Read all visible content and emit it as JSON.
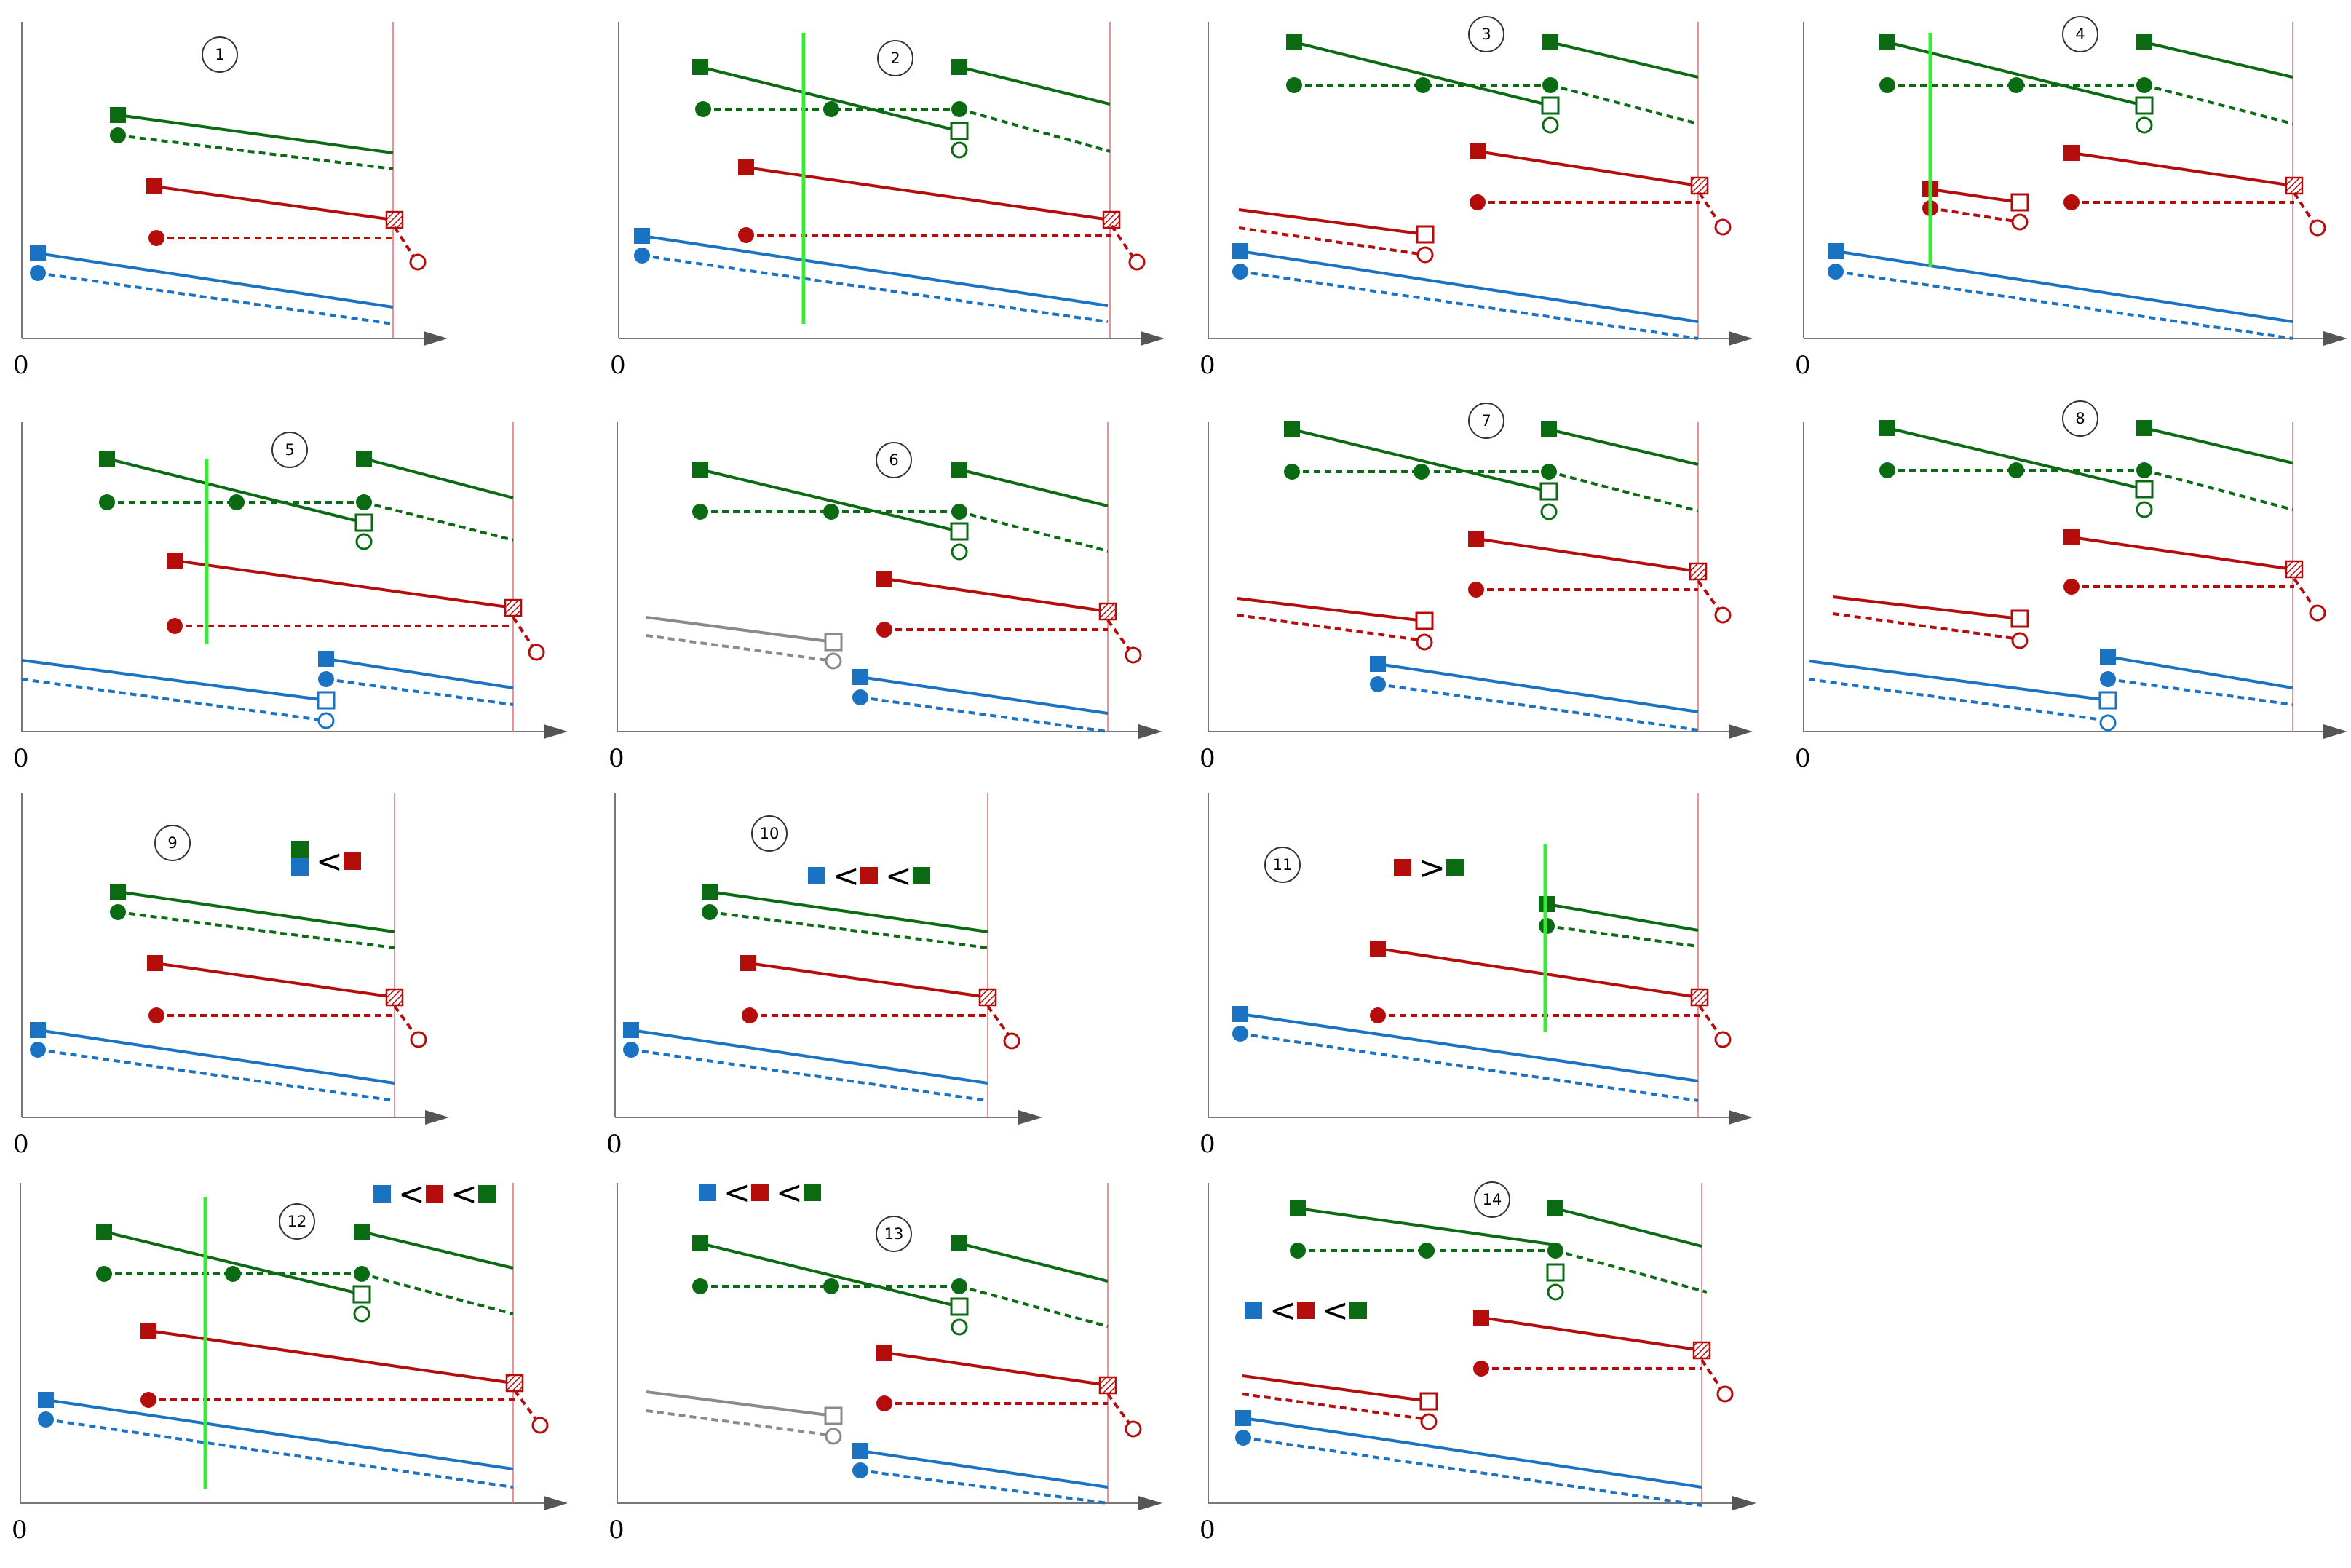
{
  "title": "",
  "colors": {
    "green": "#0a6b12",
    "red": "#b50c0c",
    "blue": "#1a72c2",
    "gray": "#8a8a8a",
    "bright_green": "#33ee33",
    "axis": "#555555",
    "limit_line": "#e07070"
  },
  "axis_origin_label": "0",
  "panels": [
    {
      "id": "panel-1",
      "label": "1",
      "comparison": []
    },
    {
      "id": "panel-2",
      "label": "2",
      "comparison": []
    },
    {
      "id": "panel-3",
      "label": "3",
      "comparison": []
    },
    {
      "id": "panel-4",
      "label": "4",
      "comparison": []
    },
    {
      "id": "panel-5",
      "label": "5",
      "comparison": []
    },
    {
      "id": "panel-6",
      "label": "6",
      "comparison": []
    },
    {
      "id": "panel-7",
      "label": "7",
      "comparison": []
    },
    {
      "id": "panel-8",
      "label": "8",
      "comparison": []
    },
    {
      "id": "panel-9",
      "label": "9",
      "comparison": [
        "green/blue",
        "<",
        "red"
      ]
    },
    {
      "id": "panel-10",
      "label": "10",
      "comparison": [
        "blue",
        "<",
        "red",
        "<",
        "green"
      ]
    },
    {
      "id": "panel-11",
      "label": "11",
      "comparison": [
        "red",
        ">",
        "green"
      ]
    },
    {
      "id": "panel-12",
      "label": "12",
      "comparison": [
        "blue",
        "<",
        "red",
        "<",
        "green"
      ]
    },
    {
      "id": "panel-13",
      "label": "13",
      "comparison": [
        "blue",
        "<",
        "red",
        "<",
        "green"
      ]
    },
    {
      "id": "panel-14",
      "label": "14",
      "comparison": [
        "blue",
        "<",
        "red",
        "<",
        "green"
      ]
    }
  ]
}
